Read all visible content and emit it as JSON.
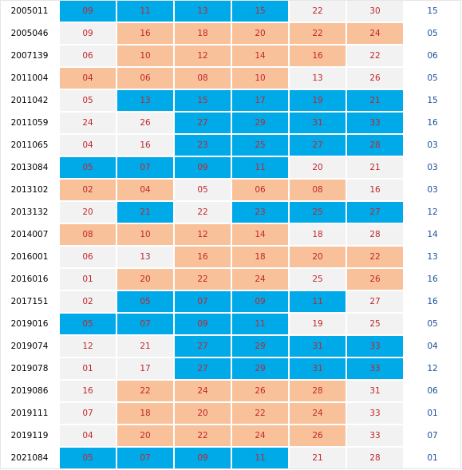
{
  "colors": {
    "highlight_blue": "#00a9e8",
    "highlight_orange": "#f9c19a",
    "red_number": "#c1272d",
    "blue_number": "#1a4f9c",
    "plain_cell": "#f2f2f2"
  },
  "rows": [
    {
      "id": "2005011",
      "reds": [
        "09",
        "11",
        "13",
        "15",
        "22",
        "30"
      ],
      "blue": "15",
      "hl": [
        "b",
        "b",
        "b",
        "b",
        "n",
        "n"
      ]
    },
    {
      "id": "2005046",
      "reds": [
        "09",
        "16",
        "18",
        "20",
        "22",
        "24"
      ],
      "blue": "05",
      "hl": [
        "n",
        "o",
        "o",
        "o",
        "o",
        "o"
      ]
    },
    {
      "id": "2007139",
      "reds": [
        "06",
        "10",
        "12",
        "14",
        "16",
        "22"
      ],
      "blue": "06",
      "hl": [
        "n",
        "o",
        "o",
        "o",
        "o",
        "n"
      ]
    },
    {
      "id": "2011004",
      "reds": [
        "04",
        "06",
        "08",
        "10",
        "13",
        "26"
      ],
      "blue": "05",
      "hl": [
        "o",
        "o",
        "o",
        "o",
        "n",
        "n"
      ]
    },
    {
      "id": "2011042",
      "reds": [
        "05",
        "13",
        "15",
        "17",
        "19",
        "21"
      ],
      "blue": "15",
      "hl": [
        "n",
        "b",
        "b",
        "b",
        "b",
        "b"
      ]
    },
    {
      "id": "2011059",
      "reds": [
        "24",
        "26",
        "27",
        "29",
        "31",
        "33"
      ],
      "blue": "16",
      "hl": [
        "n",
        "n",
        "b",
        "b",
        "b",
        "b"
      ]
    },
    {
      "id": "2011065",
      "reds": [
        "04",
        "16",
        "23",
        "25",
        "27",
        "28"
      ],
      "blue": "03",
      "hl": [
        "n",
        "n",
        "b",
        "b",
        "b",
        "b"
      ]
    },
    {
      "id": "2013084",
      "reds": [
        "05",
        "07",
        "09",
        "11",
        "20",
        "21"
      ],
      "blue": "03",
      "hl": [
        "b",
        "b",
        "b",
        "b",
        "n",
        "n"
      ]
    },
    {
      "id": "2013102",
      "reds": [
        "02",
        "04",
        "05",
        "06",
        "08",
        "16"
      ],
      "blue": "03",
      "hl": [
        "o",
        "o",
        "n",
        "o",
        "o",
        "n"
      ]
    },
    {
      "id": "2013132",
      "reds": [
        "20",
        "21",
        "22",
        "23",
        "25",
        "27"
      ],
      "blue": "12",
      "hl": [
        "n",
        "b",
        "n",
        "b",
        "b",
        "b"
      ]
    },
    {
      "id": "2014007",
      "reds": [
        "08",
        "10",
        "12",
        "14",
        "18",
        "28"
      ],
      "blue": "14",
      "hl": [
        "o",
        "o",
        "o",
        "o",
        "n",
        "n"
      ]
    },
    {
      "id": "2016001",
      "reds": [
        "06",
        "13",
        "16",
        "18",
        "20",
        "22"
      ],
      "blue": "13",
      "hl": [
        "n",
        "n",
        "o",
        "o",
        "o",
        "o"
      ]
    },
    {
      "id": "2016016",
      "reds": [
        "01",
        "20",
        "22",
        "24",
        "25",
        "26"
      ],
      "blue": "16",
      "hl": [
        "n",
        "o",
        "o",
        "o",
        "n",
        "o"
      ]
    },
    {
      "id": "2017151",
      "reds": [
        "02",
        "05",
        "07",
        "09",
        "11",
        "27"
      ],
      "blue": "16",
      "hl": [
        "n",
        "b",
        "b",
        "b",
        "b",
        "n"
      ]
    },
    {
      "id": "2019016",
      "reds": [
        "05",
        "07",
        "09",
        "11",
        "19",
        "25"
      ],
      "blue": "05",
      "hl": [
        "b",
        "b",
        "b",
        "b",
        "n",
        "n"
      ]
    },
    {
      "id": "2019074",
      "reds": [
        "12",
        "21",
        "27",
        "29",
        "31",
        "33"
      ],
      "blue": "04",
      "hl": [
        "n",
        "n",
        "b",
        "b",
        "b",
        "b"
      ]
    },
    {
      "id": "2019078",
      "reds": [
        "01",
        "17",
        "27",
        "29",
        "31",
        "33"
      ],
      "blue": "12",
      "hl": [
        "n",
        "n",
        "b",
        "b",
        "b",
        "b"
      ]
    },
    {
      "id": "2019086",
      "reds": [
        "16",
        "22",
        "24",
        "26",
        "28",
        "31"
      ],
      "blue": "06",
      "hl": [
        "n",
        "o",
        "o",
        "o",
        "o",
        "n"
      ]
    },
    {
      "id": "2019111",
      "reds": [
        "07",
        "18",
        "20",
        "22",
        "24",
        "33"
      ],
      "blue": "01",
      "hl": [
        "n",
        "o",
        "o",
        "o",
        "o",
        "n"
      ]
    },
    {
      "id": "2019119",
      "reds": [
        "04",
        "20",
        "22",
        "24",
        "26",
        "33"
      ],
      "blue": "07",
      "hl": [
        "n",
        "o",
        "o",
        "o",
        "o",
        "n"
      ]
    },
    {
      "id": "2021084",
      "reds": [
        "05",
        "07",
        "09",
        "11",
        "21",
        "28"
      ],
      "blue": "01",
      "hl": [
        "b",
        "b",
        "b",
        "b",
        "n",
        "n"
      ]
    }
  ]
}
